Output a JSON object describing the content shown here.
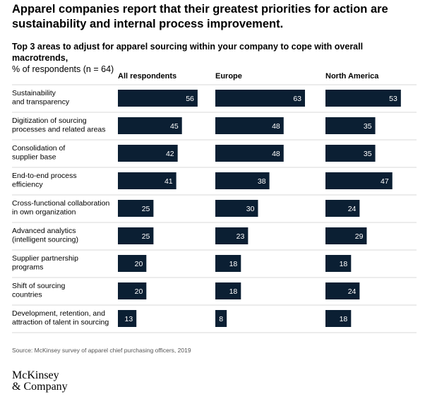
{
  "headline": "Apparel companies report that their greatest priorities for action are sustainability and internal process improvement.",
  "subtitle_bold": "Top 3 areas to adjust for apparel sourcing within your company to cope with overall macrotrends,",
  "subtitle_rest": "% of respondents (n = 64)",
  "source": "Source: McKinsey survey of apparel chief purchasing officers, 2019",
  "logo_line1": "McKinsey",
  "logo_line2": "& Company",
  "colors": {
    "bar": "#0b1f33",
    "bar_text": "#ffffff",
    "label_text": "#000000",
    "rule": "#d9d9d9"
  },
  "chart_data": {
    "type": "bar",
    "orientation": "horizontal",
    "title": "Top 3 areas to adjust for apparel sourcing within your company to cope with overall macrotrends",
    "unit": "% of respondents",
    "categories": [
      [
        "Sustainability",
        "and transparency"
      ],
      [
        "Digitization of sourcing",
        "processes and related areas"
      ],
      [
        "Consolidation of",
        "supplier base"
      ],
      [
        "End-to-end process",
        "efficiency"
      ],
      [
        "Cross-functional collaboration",
        "in own organization"
      ],
      [
        "Advanced analytics",
        "(intelligent sourcing)"
      ],
      [
        "Supplier partnership",
        "programs"
      ],
      [
        "Shift of sourcing",
        "countries"
      ],
      [
        "Development, retention, and",
        "attraction of talent in sourcing"
      ]
    ],
    "series": [
      {
        "name": "All respondents",
        "values": [
          56,
          45,
          42,
          41,
          25,
          25,
          20,
          20,
          13
        ]
      },
      {
        "name": "Europe",
        "values": [
          63,
          48,
          48,
          38,
          30,
          23,
          18,
          18,
          8
        ]
      },
      {
        "name": "North America",
        "values": [
          53,
          35,
          35,
          47,
          24,
          29,
          18,
          24,
          18
        ]
      }
    ],
    "xlim": [
      0,
      63
    ]
  }
}
